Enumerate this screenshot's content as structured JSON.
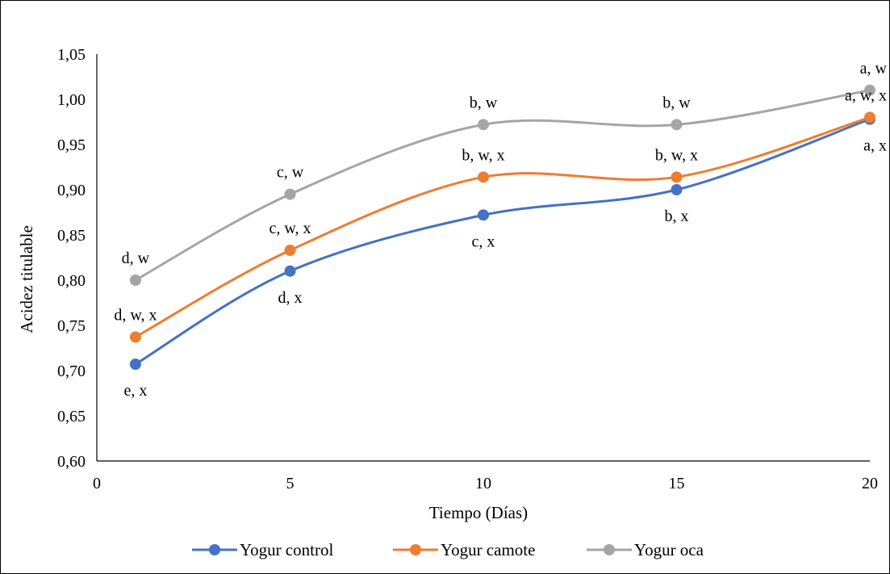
{
  "chart_data": {
    "type": "line",
    "smooth": true,
    "xlabel": "Tiempo (Días)",
    "ylabel": "Acidez titulable",
    "xlim": [
      0,
      20
    ],
    "ylim": [
      0.6,
      1.05
    ],
    "x_ticks": [
      "0",
      "5",
      "10",
      "15",
      "20"
    ],
    "y_ticks": [
      "0,60",
      "0,65",
      "0,70",
      "0,75",
      "0,80",
      "0,85",
      "0,90",
      "0,95",
      "1,00",
      "1,05"
    ],
    "grid": false,
    "legend_position": "bottom",
    "series": [
      {
        "name": "Yogur control",
        "color": "#4472C4",
        "x": [
          1,
          5,
          10,
          15,
          20
        ],
        "y": [
          0.707,
          0.81,
          0.872,
          0.9,
          0.978
        ],
        "labels": [
          "e, x",
          "d, x",
          "c, x",
          "b, x",
          "a, x"
        ],
        "label_position": "below"
      },
      {
        "name": "Yogur camote",
        "color": "#ED7D31",
        "x": [
          1,
          5,
          10,
          15,
          20
        ],
        "y": [
          0.737,
          0.833,
          0.914,
          0.914,
          0.98
        ],
        "labels": [
          "d, w, x",
          "c, w, x",
          "b, w, x",
          "b, w, x",
          "a, w, x"
        ],
        "label_position": "above"
      },
      {
        "name": "Yogur oca",
        "color": "#A5A5A5",
        "x": [
          1,
          5,
          10,
          15,
          20
        ],
        "y": [
          0.8,
          0.895,
          0.972,
          0.972,
          1.01
        ],
        "labels": [
          "d, w",
          "c, w",
          "b, w",
          "b, w",
          "a, w"
        ],
        "label_position": "above"
      }
    ]
  }
}
